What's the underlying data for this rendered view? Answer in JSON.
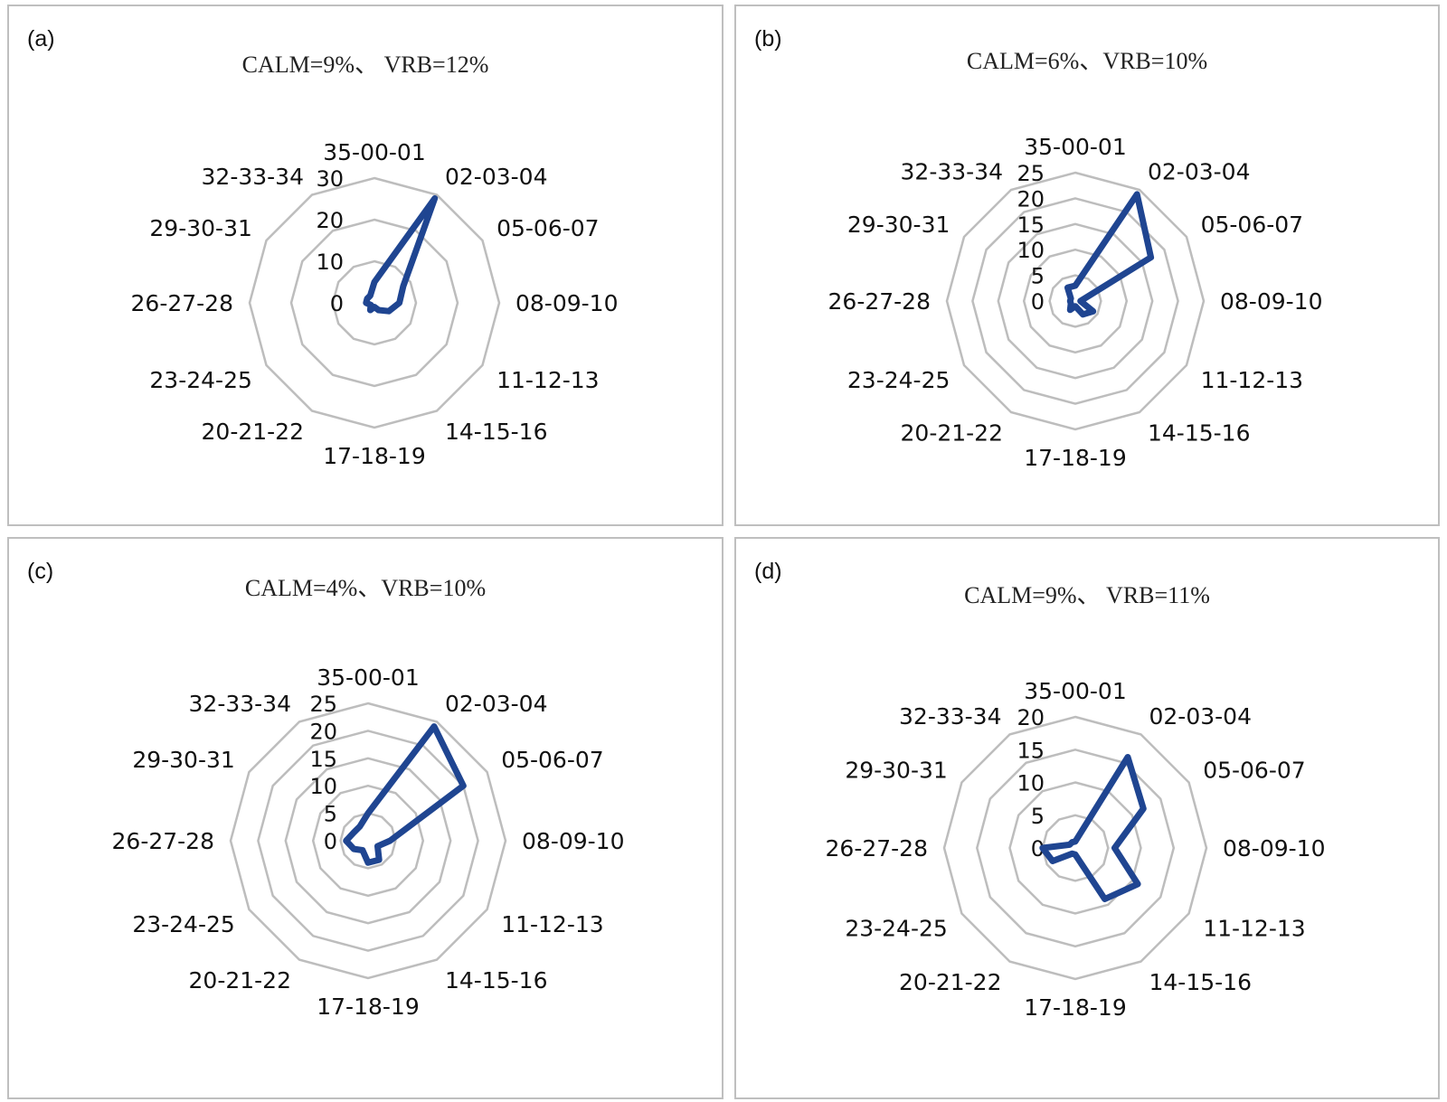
{
  "chart_data": [
    {
      "type": "radar",
      "panel_label": "(a)",
      "subtitle": "CALM=9%、 VRB=12%",
      "categories": [
        "35-00-01",
        "02-03-04",
        "05-06-07",
        "08-09-10",
        "11-12-13",
        "14-15-16",
        "17-18-19",
        "20-21-22",
        "23-24-25",
        "26-27-28",
        "29-30-31",
        "32-33-34"
      ],
      "rlim": [
        0,
        30
      ],
      "ticks": [
        0,
        10,
        20,
        30
      ],
      "series_color": "#1f4591",
      "grid": true,
      "values": [
        5,
        29,
        8,
        6,
        4,
        2,
        1,
        2,
        1,
        2,
        2,
        2
      ]
    },
    {
      "type": "radar",
      "panel_label": "(b)",
      "subtitle": "CALM=6%、VRB=10%",
      "categories": [
        "35-00-01",
        "02-03-04",
        "05-06-07",
        "08-09-10",
        "11-12-13",
        "14-15-16",
        "17-18-19",
        "20-21-22",
        "23-24-25",
        "26-27-28",
        "29-30-31",
        "32-33-34"
      ],
      "rlim": [
        0,
        25
      ],
      "ticks": [
        0,
        5,
        10,
        15,
        20,
        25
      ],
      "series_color": "#1f4591",
      "grid": true,
      "values": [
        3,
        24,
        17,
        1,
        4,
        3,
        1,
        2,
        1,
        1,
        1,
        3
      ]
    },
    {
      "type": "radar",
      "panel_label": "(c)",
      "subtitle": "CALM=4%、VRB=10%",
      "categories": [
        "35-00-01",
        "02-03-04",
        "05-06-07",
        "08-09-10",
        "11-12-13",
        "14-15-16",
        "17-18-19",
        "20-21-22",
        "23-24-25",
        "26-27-28",
        "29-30-31",
        "32-33-34"
      ],
      "rlim": [
        0,
        25
      ],
      "ticks": [
        0,
        5,
        10,
        15,
        20,
        25
      ],
      "series_color": "#1f4591",
      "grid": true,
      "values": [
        5,
        24,
        20,
        4,
        2,
        4,
        4,
        2,
        3,
        4,
        3,
        3
      ]
    },
    {
      "type": "radar",
      "panel_label": "(d)",
      "subtitle": "CALM=9%、 VRB=11%",
      "categories": [
        "35-00-01",
        "02-03-04",
        "05-06-07",
        "08-09-10",
        "11-12-13",
        "14-15-16",
        "17-18-19",
        "20-21-22",
        "23-24-25",
        "26-27-28",
        "29-30-31",
        "32-33-34"
      ],
      "rlim": [
        0,
        20
      ],
      "ticks": [
        0,
        5,
        10,
        15,
        20
      ],
      "series_color": "#1f4591",
      "grid": true,
      "values": [
        1,
        16,
        12,
        6,
        11,
        9,
        1,
        1,
        4,
        5,
        1,
        1
      ]
    }
  ]
}
